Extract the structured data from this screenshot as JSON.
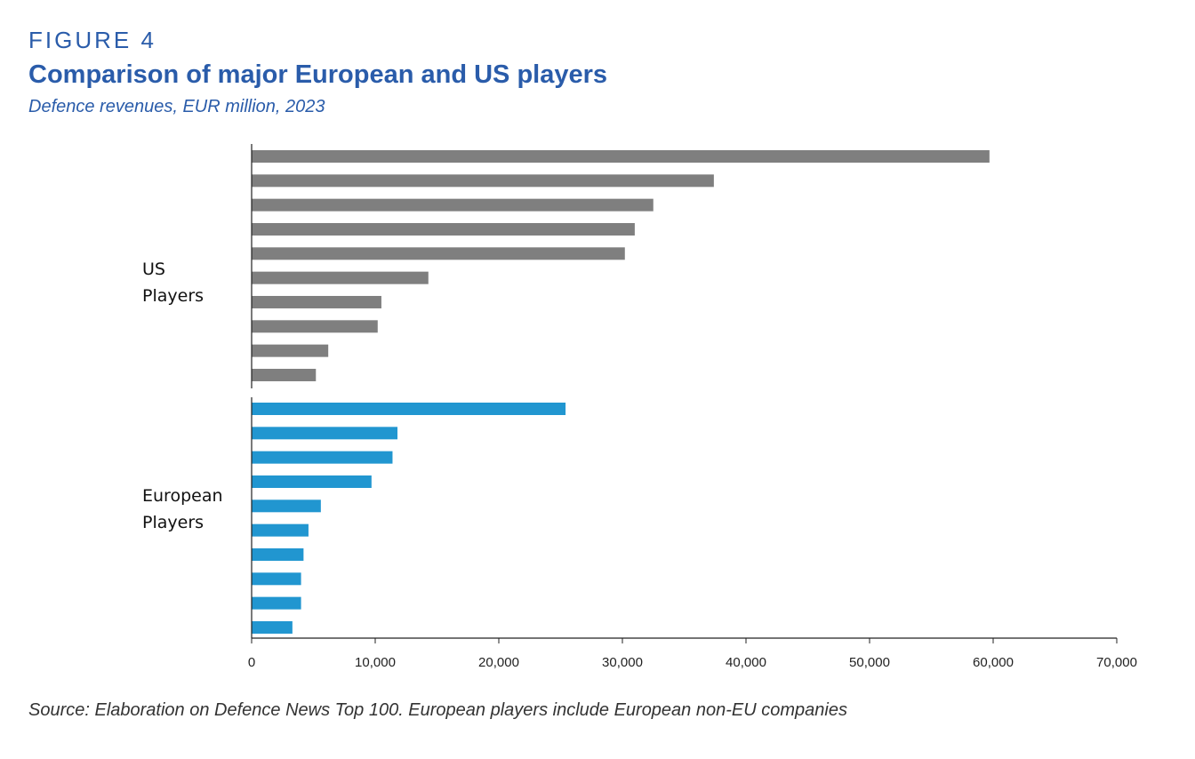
{
  "figure_label": "FIGURE 4",
  "title": "Comparison of major European and US players",
  "subtitle": "Defence revenues, EUR million, 2023",
  "source": "Source: Elaboration on Defence News Top 100. European players include European non-EU companies",
  "chart_data": {
    "type": "bar",
    "orientation": "horizontal",
    "title": "Comparison of major European and US players",
    "xlabel": "Defence revenues, EUR million",
    "xlim": [
      0,
      70000
    ],
    "xticks": [
      "0",
      "10,000",
      "20,000",
      "30,000",
      "40,000",
      "50,000",
      "60,000",
      "70,000"
    ],
    "grid": false,
    "series": [
      {
        "name": "US Players",
        "label_lines": [
          "US",
          "Players"
        ],
        "color": "#7f7f7f",
        "values": [
          59700,
          37400,
          32500,
          31000,
          30200,
          14300,
          10500,
          10200,
          6200,
          5200
        ]
      },
      {
        "name": "European Players",
        "label_lines": [
          "European",
          "Players"
        ],
        "color": "#2196d0",
        "values": [
          25400,
          11800,
          11400,
          9700,
          5600,
          4600,
          4200,
          4000,
          4000,
          3300
        ]
      }
    ]
  }
}
